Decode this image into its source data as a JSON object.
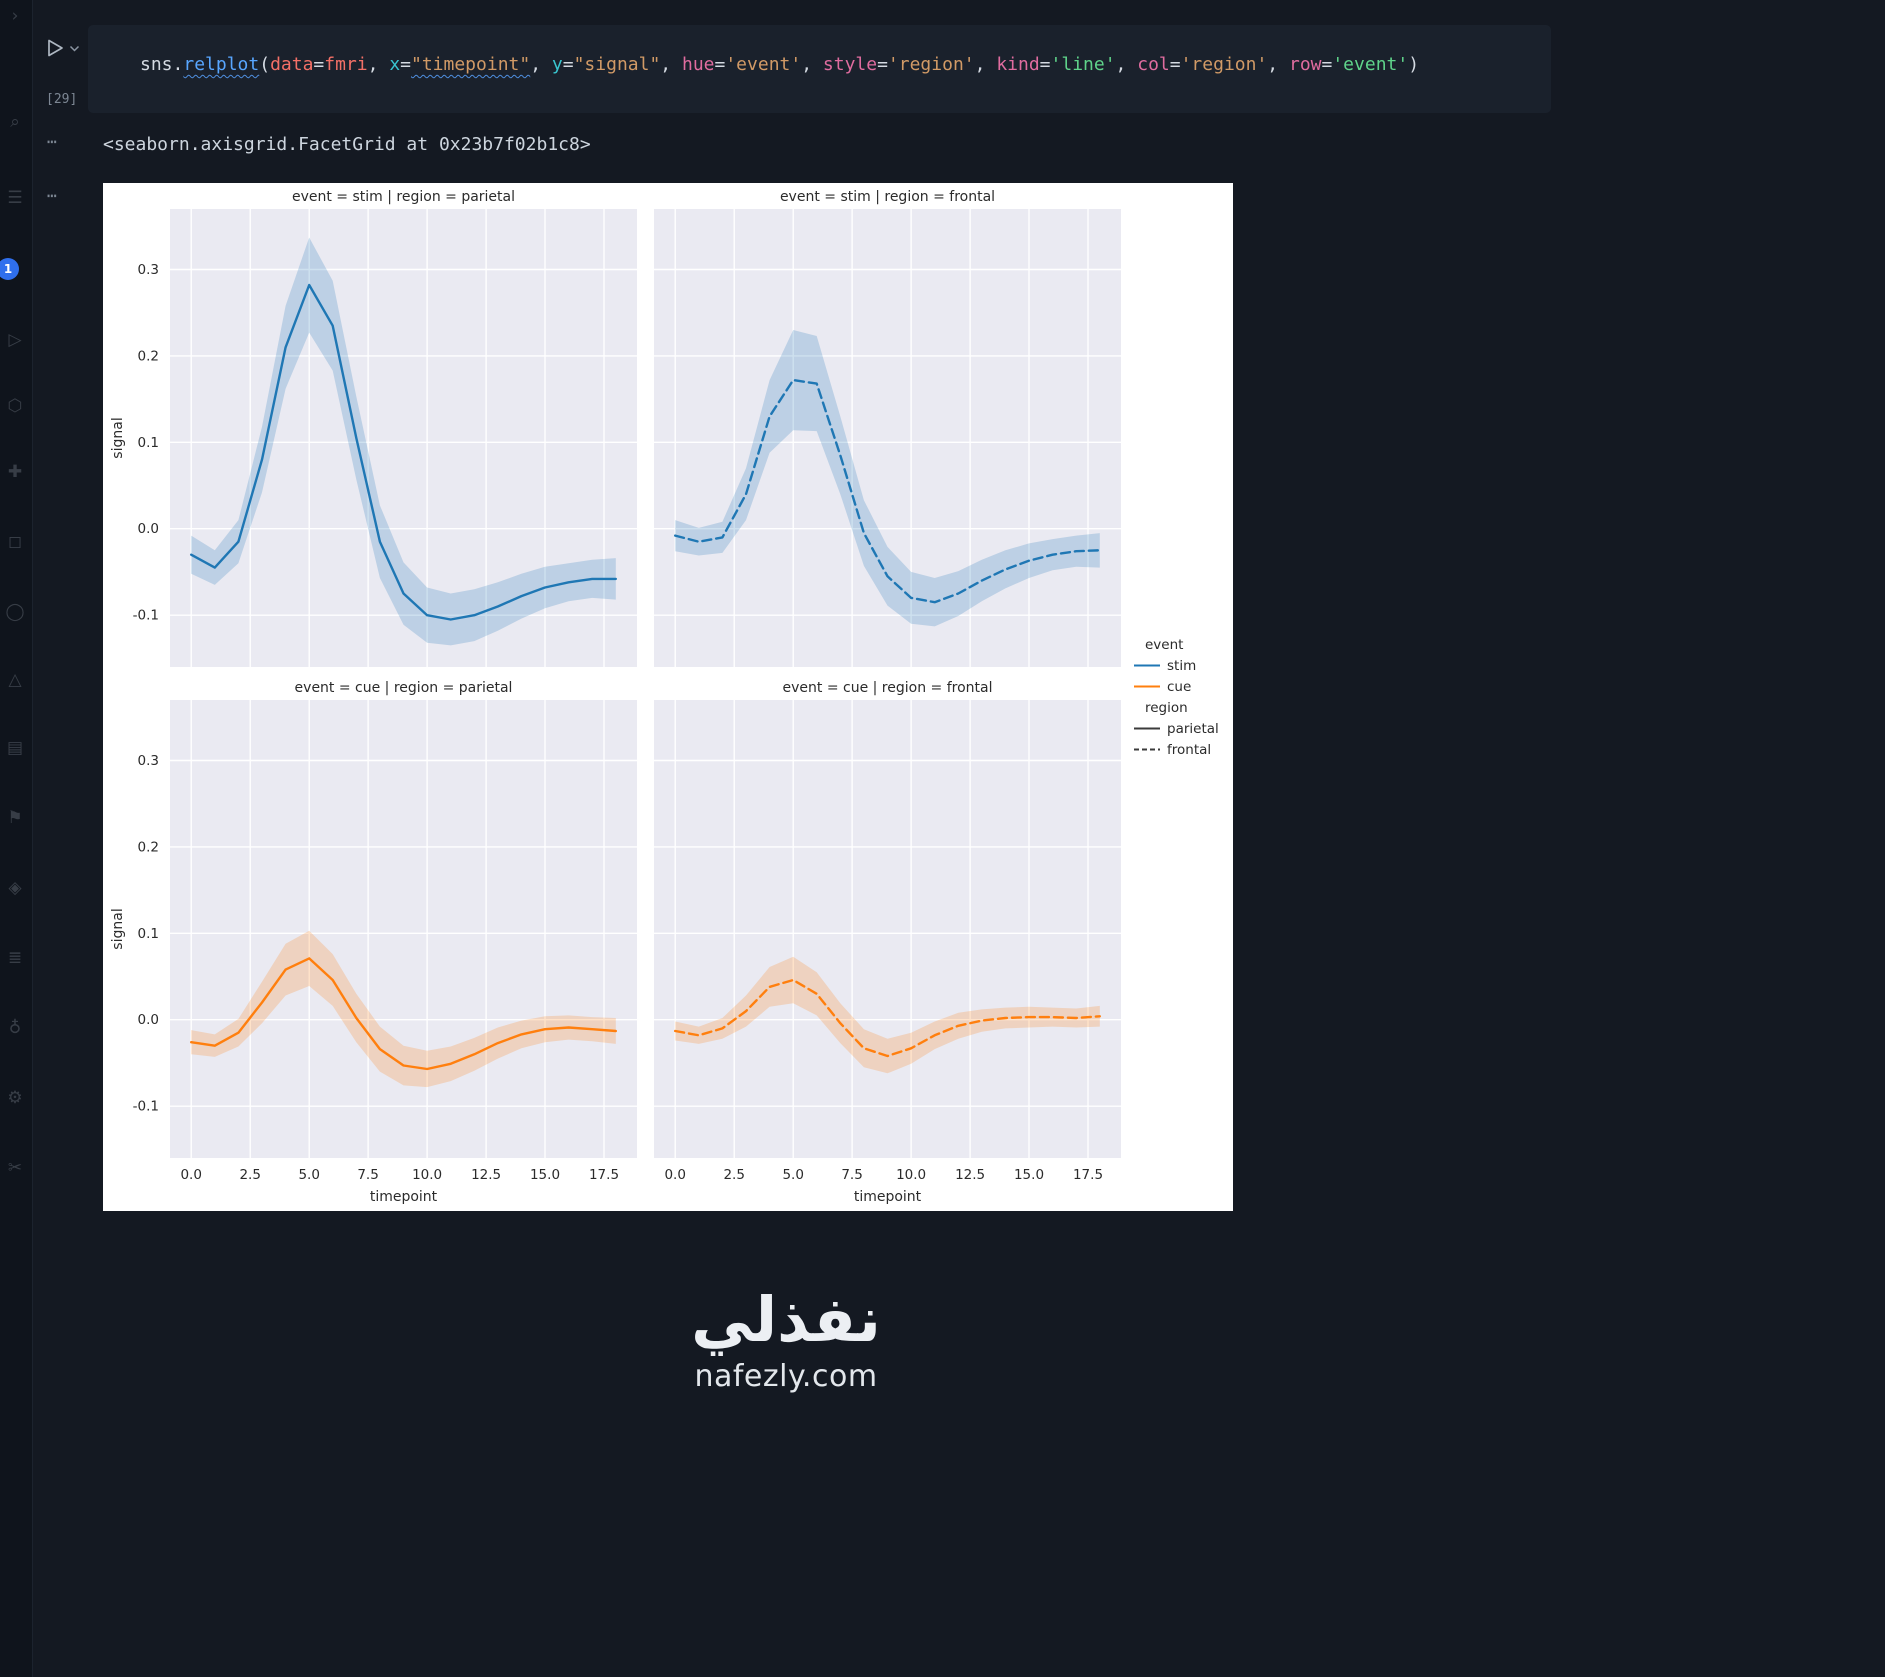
{
  "activity_bar": {
    "badge": "1",
    "icon_glyphs": [
      "›",
      "⌕",
      "☰",
      "▷",
      "⬡",
      "✚",
      "◻",
      "◯",
      "△",
      "▤",
      "⚑",
      "◈",
      "≣",
      "♁",
      "⚙",
      "✂"
    ]
  },
  "gutter": {
    "ellipsis": "⋯"
  },
  "cell": {
    "execution_count": "[29]",
    "tokens": [
      {
        "t": "sns",
        "c": "plain"
      },
      {
        "t": ".",
        "c": "plain"
      },
      {
        "t": "relplot",
        "c": "func",
        "u": true
      },
      {
        "t": "(",
        "c": "bracket"
      },
      {
        "t": "data",
        "c": "red"
      },
      {
        "t": "=",
        "c": "op"
      },
      {
        "t": "fmri",
        "c": "red"
      },
      {
        "t": ", ",
        "c": "plain"
      },
      {
        "t": "x",
        "c": "cyan"
      },
      {
        "t": "=",
        "c": "op"
      },
      {
        "t": "\"timepoint\"",
        "c": "orange",
        "u": true
      },
      {
        "t": ", ",
        "c": "plain"
      },
      {
        "t": "y",
        "c": "cyan"
      },
      {
        "t": "=",
        "c": "op"
      },
      {
        "t": "\"signal\"",
        "c": "orange"
      },
      {
        "t": ", ",
        "c": "plain"
      },
      {
        "t": "hue",
        "c": "pink"
      },
      {
        "t": "=",
        "c": "op"
      },
      {
        "t": "'event'",
        "c": "orange"
      },
      {
        "t": ", ",
        "c": "plain"
      },
      {
        "t": "style",
        "c": "pink"
      },
      {
        "t": "=",
        "c": "op"
      },
      {
        "t": "'region'",
        "c": "orange"
      },
      {
        "t": ", ",
        "c": "plain"
      },
      {
        "t": "kind",
        "c": "pink"
      },
      {
        "t": "=",
        "c": "op"
      },
      {
        "t": "'line'",
        "c": "green"
      },
      {
        "t": ", ",
        "c": "plain"
      },
      {
        "t": "col",
        "c": "pink"
      },
      {
        "t": "=",
        "c": "op"
      },
      {
        "t": "'region'",
        "c": "orange"
      },
      {
        "t": ", ",
        "c": "plain"
      },
      {
        "t": "row",
        "c": "pink"
      },
      {
        "t": "=",
        "c": "op"
      },
      {
        "t": "'event'",
        "c": "green"
      },
      {
        "t": ")",
        "c": "bracket"
      }
    ]
  },
  "output": {
    "repr": "<seaborn.axisgrid.FacetGrid at 0x23b7f02b1c8>"
  },
  "chart_data": {
    "type": "line",
    "faceting": {
      "row": "event",
      "col": "region"
    },
    "xlabel": "timepoint",
    "ylabel": "signal",
    "xlim": [
      -0.9,
      18.9
    ],
    "ylim": [
      -0.16,
      0.37
    ],
    "xticks": [
      0,
      2.5,
      5,
      7.5,
      10,
      12.5,
      15,
      17.5
    ],
    "yticks": [
      0.3,
      0.2,
      0.1,
      0,
      -0.1
    ],
    "grid": true,
    "panel_bg": "#eaeaf2",
    "facets": [
      {
        "title": "event = stim | region = parietal",
        "color": "#1f77b4",
        "dash": false,
        "x": [
          0,
          1,
          2,
          3,
          4,
          5,
          6,
          7,
          8,
          9,
          10,
          11,
          12,
          13,
          14,
          15,
          16,
          17,
          18
        ],
        "y": [
          -0.03,
          -0.045,
          -0.015,
          0.08,
          0.21,
          0.282,
          0.235,
          0.105,
          -0.015,
          -0.075,
          -0.1,
          -0.105,
          -0.1,
          -0.09,
          -0.078,
          -0.068,
          -0.062,
          -0.058,
          -0.058
        ],
        "band": [
          0.022,
          0.02,
          0.025,
          0.038,
          0.048,
          0.055,
          0.052,
          0.048,
          0.042,
          0.036,
          0.032,
          0.03,
          0.03,
          0.028,
          0.026,
          0.024,
          0.022,
          0.022,
          0.024
        ]
      },
      {
        "title": "event = stim | region = frontal",
        "color": "#1f77b4",
        "dash": true,
        "x": [
          0,
          1,
          2,
          3,
          4,
          5,
          6,
          7,
          8,
          9,
          10,
          11,
          12,
          13,
          14,
          15,
          16,
          17,
          18
        ],
        "y": [
          -0.008,
          -0.015,
          -0.01,
          0.04,
          0.13,
          0.172,
          0.168,
          0.085,
          -0.005,
          -0.055,
          -0.08,
          -0.085,
          -0.075,
          -0.06,
          -0.047,
          -0.037,
          -0.03,
          -0.026,
          -0.025
        ],
        "band": [
          0.018,
          0.016,
          0.018,
          0.03,
          0.042,
          0.058,
          0.055,
          0.045,
          0.038,
          0.034,
          0.03,
          0.028,
          0.026,
          0.024,
          0.022,
          0.02,
          0.018,
          0.018,
          0.02
        ]
      },
      {
        "title": "event = cue | region = parietal",
        "color": "#ff7f0e",
        "dash": false,
        "x": [
          0,
          1,
          2,
          3,
          4,
          5,
          6,
          7,
          8,
          9,
          10,
          11,
          12,
          13,
          14,
          15,
          16,
          17,
          18
        ],
        "y": [
          -0.026,
          -0.03,
          -0.015,
          0.02,
          0.058,
          0.071,
          0.046,
          0.002,
          -0.034,
          -0.053,
          -0.057,
          -0.051,
          -0.04,
          -0.027,
          -0.017,
          -0.011,
          -0.009,
          -0.011,
          -0.013
        ],
        "band": [
          0.014,
          0.013,
          0.016,
          0.024,
          0.03,
          0.032,
          0.03,
          0.028,
          0.026,
          0.023,
          0.021,
          0.02,
          0.019,
          0.018,
          0.016,
          0.015,
          0.014,
          0.014,
          0.015
        ]
      },
      {
        "title": "event = cue | region = frontal",
        "color": "#ff7f0e",
        "dash": true,
        "x": [
          0,
          1,
          2,
          3,
          4,
          5,
          6,
          7,
          8,
          9,
          10,
          11,
          12,
          13,
          14,
          15,
          16,
          17,
          18
        ],
        "y": [
          -0.013,
          -0.018,
          -0.01,
          0.01,
          0.038,
          0.046,
          0.03,
          -0.004,
          -0.033,
          -0.042,
          -0.033,
          -0.018,
          -0.007,
          -0.001,
          0.002,
          0.003,
          0.003,
          0.002,
          0.004
        ],
        "band": [
          0.011,
          0.01,
          0.012,
          0.018,
          0.023,
          0.027,
          0.025,
          0.023,
          0.022,
          0.02,
          0.018,
          0.016,
          0.015,
          0.013,
          0.012,
          0.012,
          0.011,
          0.011,
          0.012
        ]
      }
    ],
    "legend": {
      "groups": [
        {
          "title": "event",
          "entries": [
            {
              "label": "stim",
              "color": "#1f77b4",
              "dash": false
            },
            {
              "label": "cue",
              "color": "#ff7f0e",
              "dash": false
            }
          ]
        },
        {
          "title": "region",
          "entries": [
            {
              "label": "parietal",
              "color": "#3b3b3b",
              "dash": false
            },
            {
              "label": "frontal",
              "color": "#3b3b3b",
              "dash": true
            }
          ]
        }
      ]
    }
  },
  "watermark": {
    "title": "نفذلي",
    "site": "nafezly.com"
  }
}
